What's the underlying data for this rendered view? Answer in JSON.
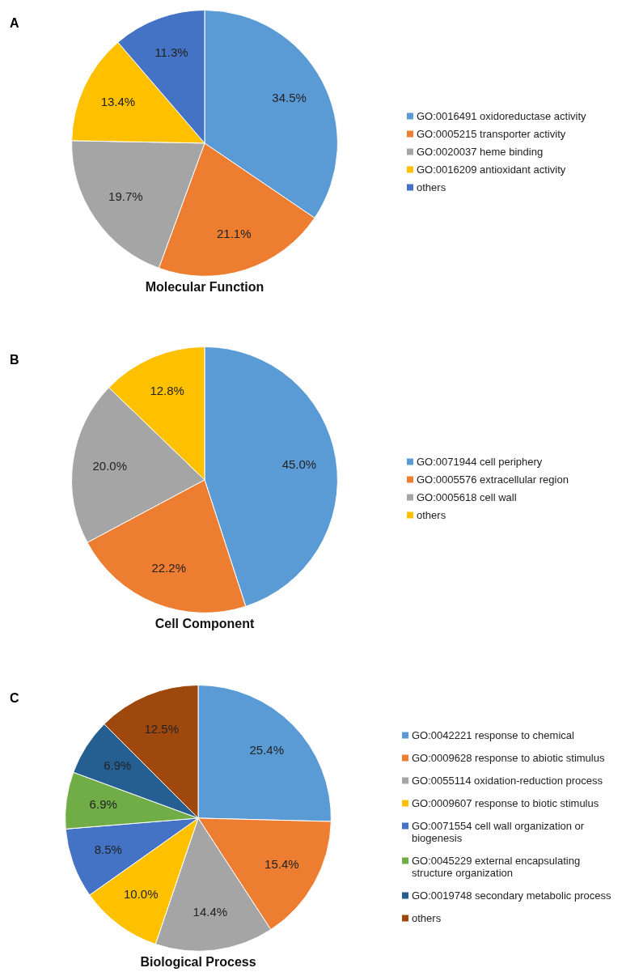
{
  "chart_data": [
    {
      "type": "pie",
      "title": "Molecular Function",
      "annotations": [
        "A"
      ],
      "legend": "right",
      "categories": [
        "GO:0016491 oxidoreductase activity",
        "GO:0005215 transporter activity",
        "GO:0020037 heme binding",
        "GO:0016209 antioxidant activity",
        "others"
      ],
      "values": [
        34.5,
        21.1,
        19.7,
        13.4,
        11.3
      ],
      "value_labels": [
        "34.5%",
        "21.1%",
        "19.7%",
        "13.4%",
        "11.3%"
      ],
      "colors": [
        "#5b9bd5",
        "#ed7d31",
        "#a5a5a5",
        "#ffc000",
        "#4472c4"
      ]
    },
    {
      "type": "pie",
      "title": "Cell Component",
      "annotations": [
        "B"
      ],
      "legend": "right",
      "categories": [
        "GO:0071944 cell periphery",
        "GO:0005576 extracellular region",
        "GO:0005618 cell wall",
        "others"
      ],
      "values": [
        45.0,
        22.2,
        20.0,
        12.8
      ],
      "value_labels": [
        "45.0%",
        "22.2%",
        "20.0%",
        "12.8%"
      ],
      "colors": [
        "#5b9bd5",
        "#ed7d31",
        "#a5a5a5",
        "#ffc000"
      ]
    },
    {
      "type": "pie",
      "title": "Biological Process",
      "annotations": [
        "C"
      ],
      "legend": "right",
      "categories": [
        "GO:0042221 response to chemical",
        "GO:0009628 response to abiotic stimulus",
        "GO:0055114 oxidation-reduction process",
        "GO:0009607 response to biotic stimulus",
        "GO:0071554 cell wall organization or biogenesis",
        "GO:0045229 external encapsulating structure organization",
        "GO:0019748 secondary metabolic process",
        "others"
      ],
      "values": [
        25.4,
        15.4,
        14.4,
        10.0,
        8.5,
        6.9,
        6.9,
        12.5
      ],
      "value_labels": [
        "25.4%",
        "15.4%",
        "14.4%",
        "10.0%",
        "8.5%",
        "6.9%",
        "6.9%",
        "12.5%"
      ],
      "colors": [
        "#5b9bd5",
        "#ed7d31",
        "#a5a5a5",
        "#ffc000",
        "#4472c4",
        "#70ad47",
        "#255e91",
        "#9e480e"
      ]
    }
  ]
}
